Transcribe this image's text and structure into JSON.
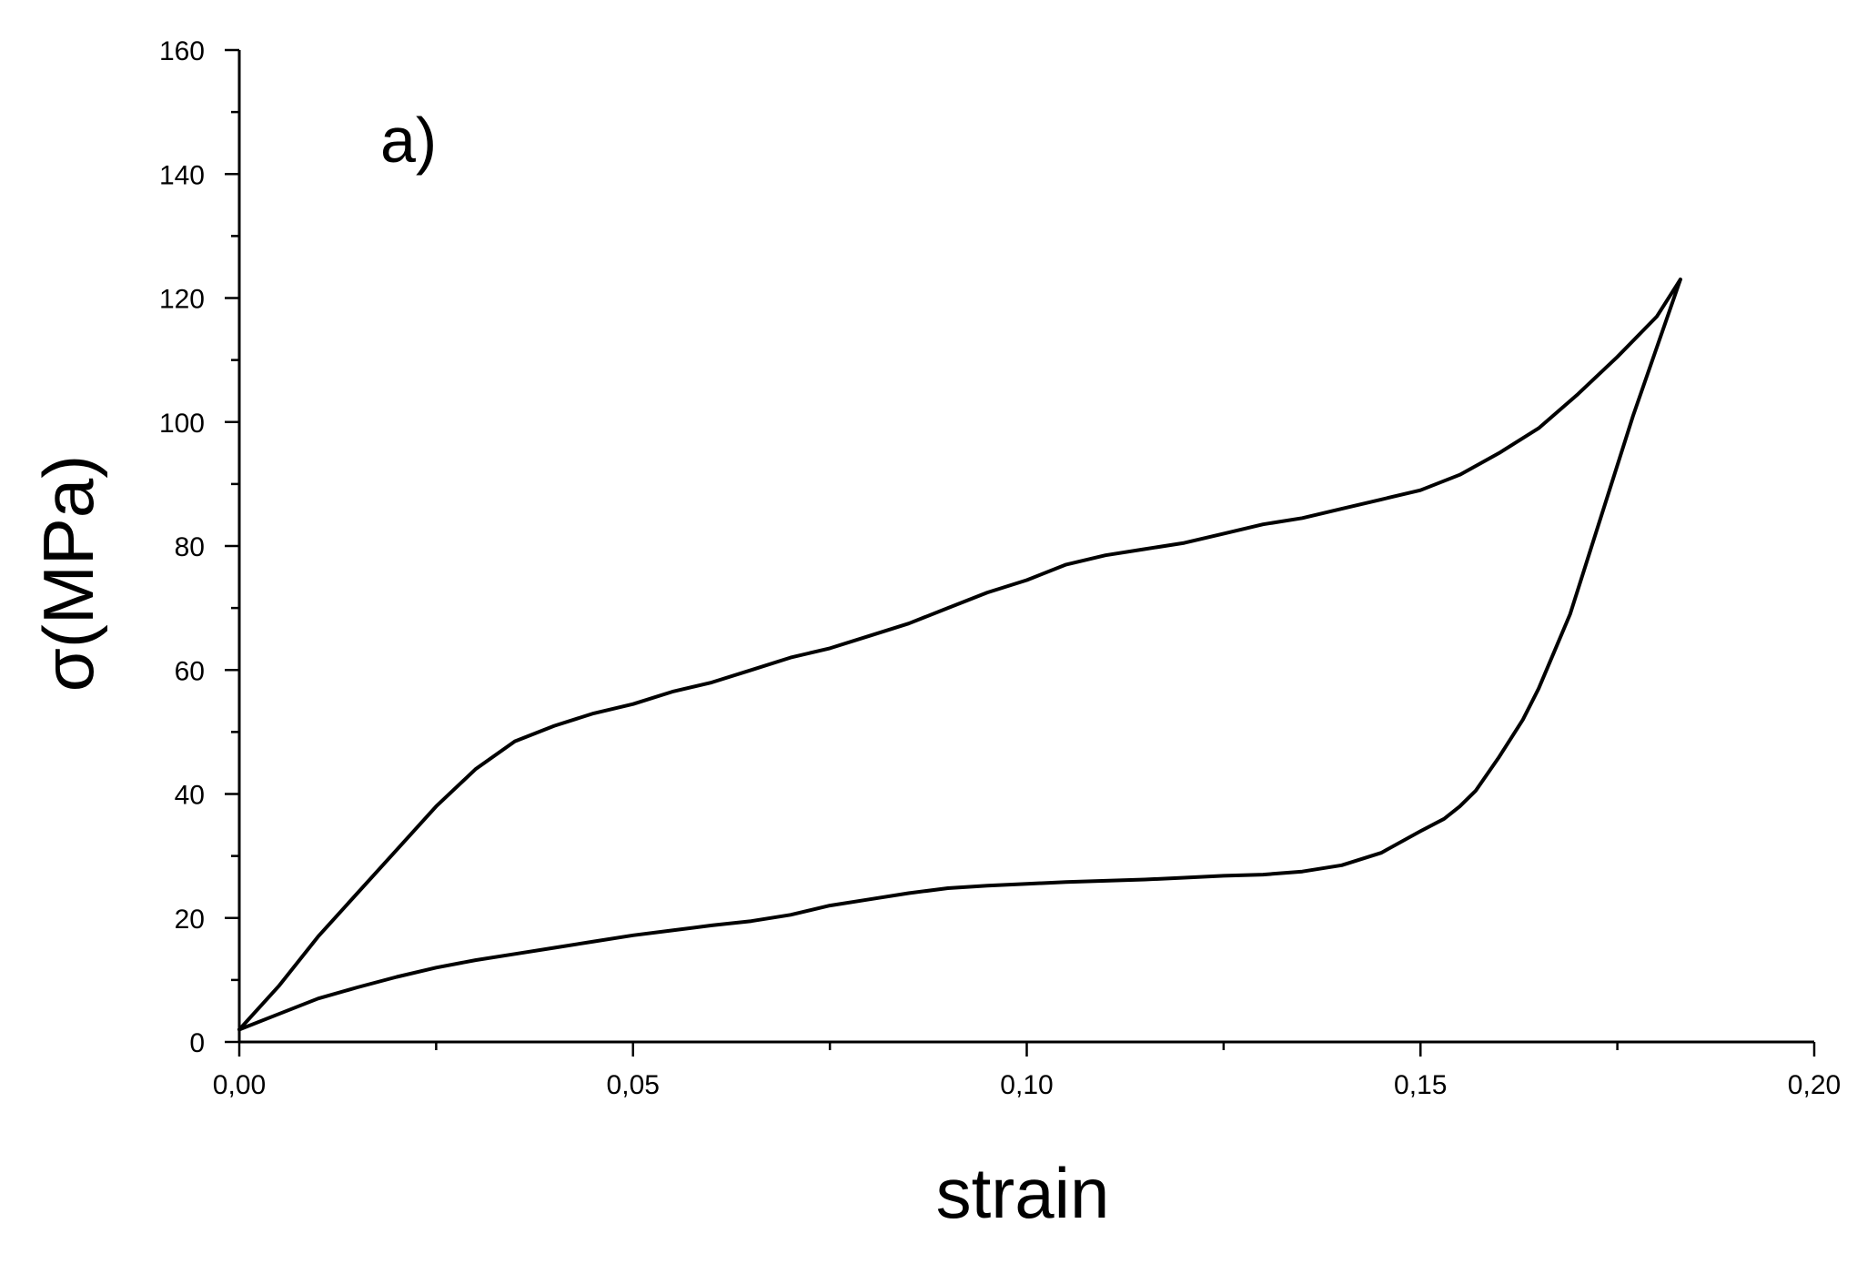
{
  "chart_data": {
    "type": "line",
    "panel_label": "a)",
    "xlabel": "strain",
    "ylabel": "σ(MPa)",
    "xlim": [
      0,
      0.2
    ],
    "ylim": [
      0,
      160
    ],
    "x_ticks": [
      0,
      0.05,
      0.1,
      0.15,
      0.2
    ],
    "x_tick_labels": [
      "0,00",
      "0,05",
      "0,10",
      "0,15",
      "0,20"
    ],
    "y_ticks": [
      0,
      20,
      40,
      60,
      80,
      100,
      120,
      140,
      160
    ],
    "y_tick_labels": [
      "0",
      "20",
      "40",
      "60",
      "80",
      "100",
      "120",
      "140",
      "160"
    ],
    "grid": false,
    "line_color": "#000000",
    "series": [
      {
        "x": [
          0.0,
          0.005,
          0.01,
          0.015,
          0.02,
          0.025,
          0.03,
          0.035,
          0.04,
          0.045,
          0.05,
          0.055,
          0.06,
          0.065,
          0.07,
          0.075,
          0.08,
          0.085,
          0.09,
          0.095,
          0.1,
          0.105,
          0.11,
          0.115,
          0.12,
          0.125,
          0.13,
          0.135,
          0.14,
          0.145,
          0.15,
          0.155,
          0.16,
          0.165,
          0.17,
          0.175,
          0.18,
          0.183
        ],
        "y": [
          2,
          9,
          17,
          24,
          31,
          38,
          44,
          48.5,
          51,
          53,
          54.5,
          56.5,
          58,
          60,
          62,
          63.5,
          65.5,
          67.5,
          70,
          72.5,
          74.5,
          77,
          78.5,
          79.5,
          80.5,
          82,
          83.5,
          84.5,
          86,
          87.5,
          89,
          91.5,
          95,
          99,
          104.5,
          110.5,
          117,
          123
        ]
      },
      {
        "x": [
          0.183,
          0.18,
          0.177,
          0.175,
          0.173,
          0.171,
          0.169,
          0.167,
          0.165,
          0.163,
          0.16,
          0.157,
          0.155,
          0.153,
          0.15,
          0.145,
          0.14,
          0.135,
          0.13,
          0.125,
          0.12,
          0.115,
          0.11,
          0.105,
          0.1,
          0.095,
          0.09,
          0.085,
          0.08,
          0.075,
          0.07,
          0.065,
          0.06,
          0.055,
          0.05,
          0.045,
          0.04,
          0.035,
          0.03,
          0.025,
          0.02,
          0.015,
          0.01,
          0.005,
          0.0
        ],
        "y": [
          123,
          112,
          101,
          93,
          85,
          77,
          69,
          63,
          57,
          52,
          46,
          40.5,
          38,
          36,
          34,
          30.5,
          28.5,
          27.5,
          27,
          26.8,
          26.5,
          26.2,
          26,
          25.8,
          25.5,
          25.2,
          24.8,
          24,
          23,
          22,
          20.5,
          19.5,
          18.8,
          18,
          17.2,
          16.2,
          15.2,
          14.2,
          13.2,
          12,
          10.5,
          8.8,
          7,
          4.5,
          2
        ]
      }
    ]
  }
}
